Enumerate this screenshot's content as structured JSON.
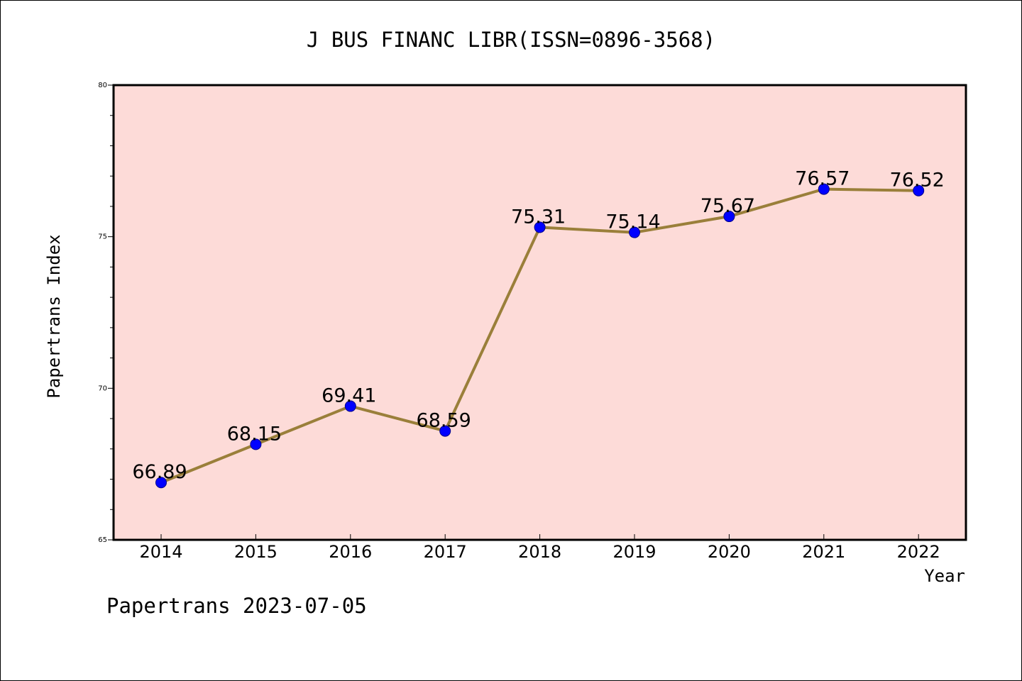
{
  "footer": {
    "text": "Papertrans 2023-07-05"
  },
  "chart_data": {
    "type": "line",
    "title": "J BUS FINANC LIBR(ISSN=0896-3568)",
    "xlabel": "Year",
    "ylabel": "Papertrans Index",
    "categories": [
      "2014",
      "2015",
      "2016",
      "2017",
      "2018",
      "2019",
      "2020",
      "2021",
      "2022"
    ],
    "values": [
      66.89,
      68.15,
      69.41,
      68.59,
      75.31,
      75.14,
      75.67,
      76.57,
      76.52
    ],
    "data_labels": [
      "66.89",
      "68.15",
      "69.41",
      "68.59",
      "75.31",
      "75.14",
      "75.67",
      "76.57",
      "76.52"
    ],
    "ylim": [
      65,
      80
    ],
    "y_major_ticks": [
      65,
      70,
      75,
      80
    ],
    "y_minor_step": 1,
    "grid": false,
    "colors": {
      "plot_background": "#fddbd8",
      "line": "#9a7f3a",
      "marker": "#0000ff",
      "axes": "#000000"
    }
  }
}
